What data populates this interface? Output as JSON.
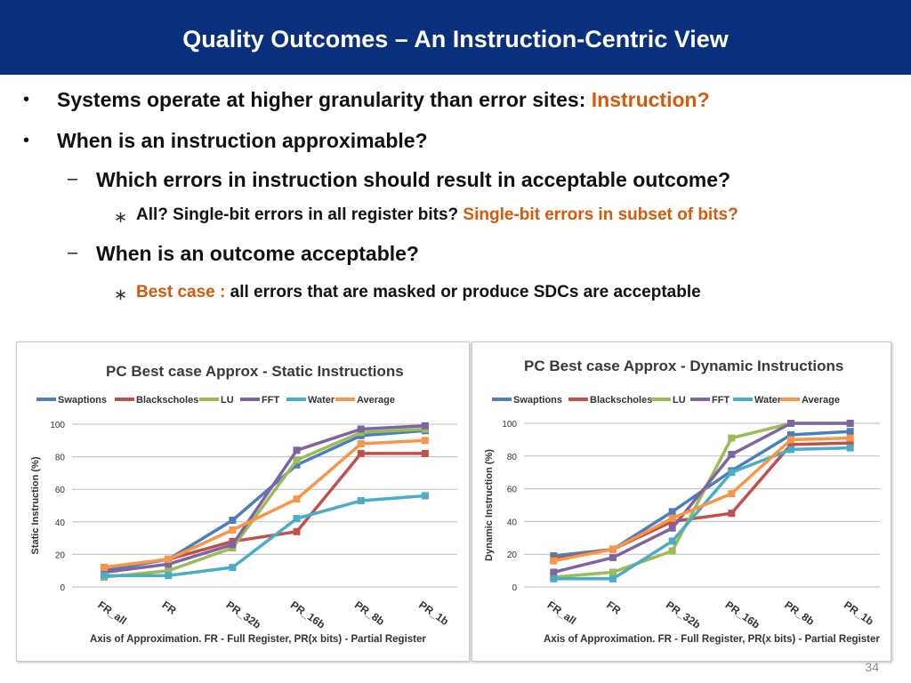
{
  "header": {
    "title": "Quality Outcomes – An Instruction-Centric View"
  },
  "bullets": {
    "b1_text": "Systems operate at higher granularity than error sites: ",
    "b1_highlight": "Instruction?",
    "b2_text": "When is an instruction approximable?",
    "sub1_text": "Which errors in instruction should result in acceptable outcome?",
    "sub1a_text": "All? Single-bit errors in all register bits? ",
    "sub1a_highlight": "Single-bit errors in subset of bits?",
    "sub2_text": "When is an outcome acceptable?",
    "sub2a_highlight": "Best case : ",
    "sub2a_text": "all errors that are masked or produce SDCs are acceptable"
  },
  "chart_data": [
    {
      "type": "line",
      "title": "PC Best case Approx - Static Instructions",
      "ylabel": "Static Instruction (%)",
      "xlabel": "Axis of Approximation. FR - Full Register, PR(x bits) - Partial Register",
      "categories": [
        "FR_all",
        "FR",
        "PR_32b",
        "PR_16b",
        "PR_8b",
        "PR_1b"
      ],
      "ylim": [
        0,
        100
      ],
      "yticks": [
        "0",
        "20",
        "40",
        "60",
        "80",
        "100"
      ],
      "grid": true,
      "legend": "top",
      "series": [
        {
          "name": "Swaptions",
          "color": "#4a7ebf",
          "values": [
            10,
            17,
            41,
            75,
            93,
            96
          ]
        },
        {
          "name": "Blackscholes",
          "color": "#c0504d",
          "values": [
            12,
            17,
            28,
            34,
            82,
            82
          ]
        },
        {
          "name": "LU",
          "color": "#9bbb59",
          "values": [
            6,
            10,
            24,
            78,
            95,
            97
          ]
        },
        {
          "name": "FFT",
          "color": "#8064a2",
          "values": [
            9,
            14,
            26,
            84,
            97,
            99
          ]
        },
        {
          "name": "Water",
          "color": "#4bacc6",
          "values": [
            7,
            7,
            12,
            42,
            53,
            56
          ]
        },
        {
          "name": "Average",
          "color": "#f79646",
          "values": [
            12,
            17,
            35,
            54,
            88,
            90
          ]
        }
      ]
    },
    {
      "type": "line",
      "title": "PC Best case Approx - Dynamic Instructions",
      "ylabel": "Dynamic Instruction (%)",
      "xlabel": "Axis of Approximation. FR - Full Register, PR(x bits) - Partial Register",
      "categories": [
        "FR_all",
        "FR",
        "PR_32b",
        "PR_16b",
        "PR_8b",
        "PR_1b"
      ],
      "ylim": [
        0,
        100
      ],
      "yticks": [
        "0",
        "20",
        "40",
        "60",
        "80",
        "100"
      ],
      "grid": true,
      "legend": "top",
      "series": [
        {
          "name": "Swaptions",
          "color": "#4a7ebf",
          "values": [
            19,
            23,
            46,
            71,
            93,
            95
          ]
        },
        {
          "name": "Blackscholes",
          "color": "#c0504d",
          "values": [
            17,
            23,
            40,
            45,
            87,
            88
          ]
        },
        {
          "name": "LU",
          "color": "#9bbb59",
          "values": [
            6,
            9,
            22,
            91,
            100,
            100
          ]
        },
        {
          "name": "FFT",
          "color": "#8064a2",
          "values": [
            9,
            18,
            36,
            81,
            100,
            100
          ]
        },
        {
          "name": "Water",
          "color": "#4bacc6",
          "values": [
            5,
            5,
            28,
            70,
            84,
            85
          ]
        },
        {
          "name": "Average",
          "color": "#f79646",
          "values": [
            16,
            23,
            42,
            57,
            90,
            91
          ]
        }
      ]
    }
  ],
  "footer": {
    "page_number": "34"
  }
}
